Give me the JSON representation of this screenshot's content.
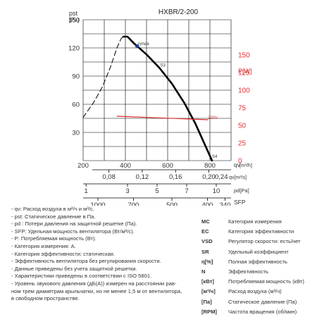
{
  "chart_data": {
    "type": "line",
    "title": "HXBR/2-200",
    "ylabel_left": "pst [Pa]",
    "ylabel_right": "P[W]",
    "xlabel": "qv[m³/h]",
    "xlim": [
      200,
      900
    ],
    "ylim": [
      0,
      150
    ],
    "ylim_right": [
      0,
      200
    ],
    "x_ticks": [
      200,
      400,
      600,
      800
    ],
    "y_ticks": [
      0,
      30,
      60,
      90,
      120,
      150
    ],
    "y_right_ticks": [
      0,
      25,
      50,
      75,
      100,
      125,
      150
    ],
    "grid": true,
    "series": [
      {
        "name": "S3",
        "color": "#000000",
        "style": "solid",
        "x": [
          390,
          410,
          440,
          500,
          560,
          620,
          680,
          730,
          770,
          810
        ],
        "y": [
          132,
          132,
          125,
          113,
          99,
          82,
          61,
          40,
          20,
          0
        ]
      },
      {
        "name": "",
        "color": "#000000",
        "style": "dashed",
        "x": [
          200,
          250,
          290,
          330,
          360,
          380,
          390
        ],
        "y": [
          46,
          62,
          78,
          100,
          120,
          130,
          132
        ]
      },
      {
        "name": "230V",
        "color": "#e03030",
        "style": "solid",
        "axis": "right",
        "x": [
          360,
          790
        ],
        "y": [
          63,
          58
        ]
      }
    ],
    "annotations": [
      {
        "text": "ηmax",
        "x": 460,
        "y": 123
      },
      {
        "text": "S3",
        "x": 565,
        "y": 100
      },
      {
        "text": "230V",
        "x": 790,
        "y": 59
      },
      {
        "text": "S4",
        "x": 810,
        "y": 3
      }
    ],
    "eta_max_point": {
      "x": 455,
      "y": 122
    },
    "scale_m3s": {
      "label": "0,24",
      "unit": "qv[m³/s]",
      "ticks": [
        "0,08",
        "0,12",
        "0,16",
        "0,20"
      ]
    },
    "scale_pd": {
      "ticks": [
        "1",
        "3",
        "5",
        "7",
        "10"
      ],
      "unit": "pd[Pa]"
    },
    "scale_sfp": {
      "ticks": [
        "1000",
        "700",
        "500",
        "400",
        "340"
      ],
      "unit": "SFP",
      "unit2": "[W/m³/s]"
    }
  },
  "legend_notes": [
    "- qv: Расход воздуха в м³/ч и м³/с.",
    "- pst: Статическое давление в Па.",
    "- pd : Потери давления на защитной решетке (Па).",
    "- SFP: Удельная мощность вентилятора (Вт/м³/с).",
    "- P: Потребляемая мощность (Вт).",
    "- Категория измерения: А.",
    "- Категория эффективности: статическая.",
    "- Эффективность вентилятора без регулирования скорости.",
    "- Данные приведены без учета защитной решетки.",
    "- Характеристики приведены в соответствии с ISO 5801.",
    "- Уровень звукового давления (дБ(А)) измерен на расстоянии рав-",
    "  ном трем диаметрам крыльчатки, но не менее 1,5 м от вентилятора,",
    "  в свободном пространстве."
  ],
  "abbreviations": [
    {
      "k": "MC",
      "v": "Категория измерения"
    },
    {
      "k": "EC",
      "v": "Категория эффективности"
    },
    {
      "k": "VSD",
      "v": "Регулятор скорости: есть/нет"
    },
    {
      "k": "SR",
      "v": "Удельный коэффициент"
    },
    {
      "k": "η[%]",
      "v": "Полная эффективность"
    },
    {
      "k": "N",
      "v": "Эффективность"
    },
    {
      "k": "[кВт]",
      "v": "Потребляемая мощность (кВт)"
    },
    {
      "k": "[м³/ч]",
      "v": "Расход воздуха (м³/ч)"
    },
    {
      "k": "[Па]",
      "v": "Статическое давление (Па)"
    },
    {
      "k": "[RPM]",
      "v": "Частота вращения (об/мин)"
    }
  ]
}
